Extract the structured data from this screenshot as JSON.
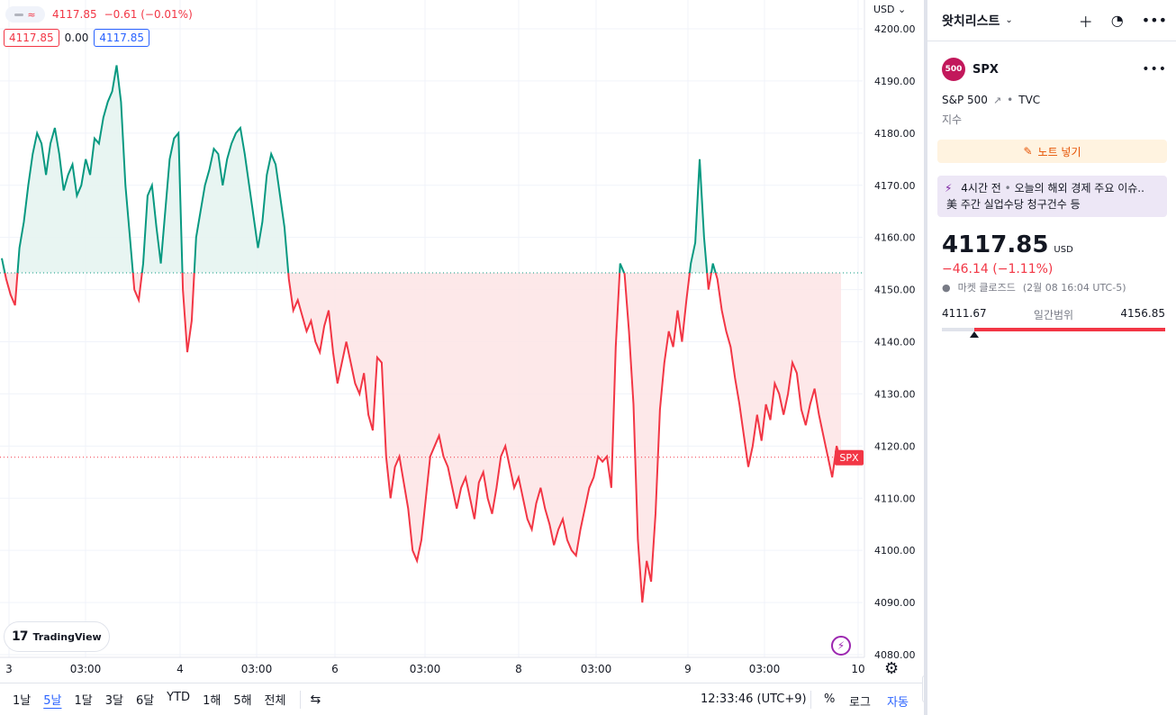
{
  "legend": {
    "price": "4117.85",
    "change": "−0.61 (−0.01%)",
    "box_left": "4117.85",
    "mid": "0.00",
    "box_right": "4117.85"
  },
  "axis": {
    "currency": "USD",
    "currency_chevron": "⌄",
    "price_ticks": [
      "4200.00",
      "4190.00",
      "4180.00",
      "4170.00",
      "4160.00",
      "4150.00",
      "4140.00",
      "4130.00",
      "4120.00",
      "4110.00",
      "4100.00",
      "4090.00",
      "4080.00"
    ],
    "time_ticks": [
      "3",
      "03:00",
      "4",
      "03:00",
      "6",
      "03:00",
      "8",
      "03:00",
      "9",
      "03:00",
      "10"
    ],
    "last_tag": "SPX"
  },
  "branding": {
    "logo_mark": "17",
    "logo_text": "TradingView"
  },
  "colors": {
    "up": "#089981",
    "down": "#f23645",
    "up_fill": "#e6f4f1",
    "down_fill": "#fde4e5",
    "accent": "#2962ff"
  },
  "bottom_bar": {
    "ranges": [
      "1날",
      "5날",
      "1달",
      "3달",
      "6달",
      "YTD",
      "1해",
      "5해",
      "전체"
    ],
    "active_range": "5날",
    "clock": "12:33:46 (UTC+9)",
    "percent": "%",
    "log": "로그",
    "auto": "자동"
  },
  "watchlist": {
    "title": "왓치리스트",
    "symbol_badge": "500",
    "symbol": "SPX",
    "description": "S&P 500",
    "exchange": "TVC",
    "type": "지수",
    "note_button": "노트 넣기",
    "news_time": "4시간 전",
    "news_text1": "오늘의 해외 경제 주요 이슈..",
    "news_text2": "美 주간 실업수당 청구건수 등",
    "price": "4117.85",
    "currency": "USD",
    "change": "−46.14 (−1.11%)",
    "market_status": "마켓 클로즈드",
    "market_time": "(2월 08 16:04 UTC-5)",
    "day_low": "4111.67",
    "day_range_label": "일간범위",
    "day_high": "4156.85"
  },
  "chart_data": {
    "type": "line",
    "series": [
      {
        "values": [
          4156,
          4152,
          4149,
          4147,
          4158,
          4163,
          4170,
          4176,
          4180,
          4178,
          4172,
          4178,
          4181,
          4176,
          4169,
          4172,
          4174,
          4168,
          4170,
          4175,
          4172,
          4179,
          4178,
          4183,
          4186,
          4188,
          4193,
          4186,
          4170,
          4160,
          4150,
          4148,
          4155,
          4168,
          4170,
          4162,
          4155,
          4165,
          4175,
          4179,
          4180,
          4150,
          4138,
          4144,
          4160,
          4165,
          4170,
          4173,
          4177,
          4176,
          4170,
          4175,
          4178,
          4180,
          4181,
          4176,
          4170,
          4164,
          4158,
          4163,
          4172,
          4176,
          4174,
          4168,
          4162,
          4152,
          4146,
          4148,
          4145,
          4142,
          4144,
          4140,
          4138,
          4143,
          4146,
          4138,
          4132,
          4136,
          4140,
          4136,
          4132,
          4130,
          4134,
          4126,
          4123,
          4137,
          4136,
          4118,
          4110,
          4116,
          4118,
          4113,
          4108,
          4100,
          4098,
          4102,
          4110,
          4118,
          4120,
          4122,
          4118,
          4116,
          4112,
          4108,
          4112,
          4114,
          4110,
          4106,
          4113,
          4115,
          4110,
          4107,
          4112,
          4118,
          4120,
          4116,
          4112,
          4114,
          4110,
          4106,
          4104,
          4109,
          4112,
          4108,
          4105,
          4101,
          4104,
          4106,
          4102,
          4100,
          4099,
          4104,
          4108,
          4112,
          4114,
          4118,
          4117,
          4118,
          4112,
          4139,
          4155,
          4153,
          4142,
          4128,
          4102,
          4090,
          4098,
          4094,
          4107,
          4127,
          4136,
          4142,
          4139,
          4146,
          4140,
          4148,
          4155,
          4159,
          4175,
          4160,
          4150,
          4155,
          4152,
          4146,
          4142,
          4139,
          4133,
          4128,
          4122,
          4116,
          4120,
          4126,
          4121,
          4128,
          4125,
          4132,
          4130,
          4126,
          4130,
          4136,
          4134,
          4127,
          4124,
          4128,
          4131,
          4126,
          4122,
          4118,
          4114,
          4120,
          4117
        ],
        "baseline": 4153.2
      }
    ],
    "x": "5 days (3 → 10)",
    "ylim": [
      4080,
      4200
    ],
    "grid": true,
    "last_value": 4117.85
  }
}
